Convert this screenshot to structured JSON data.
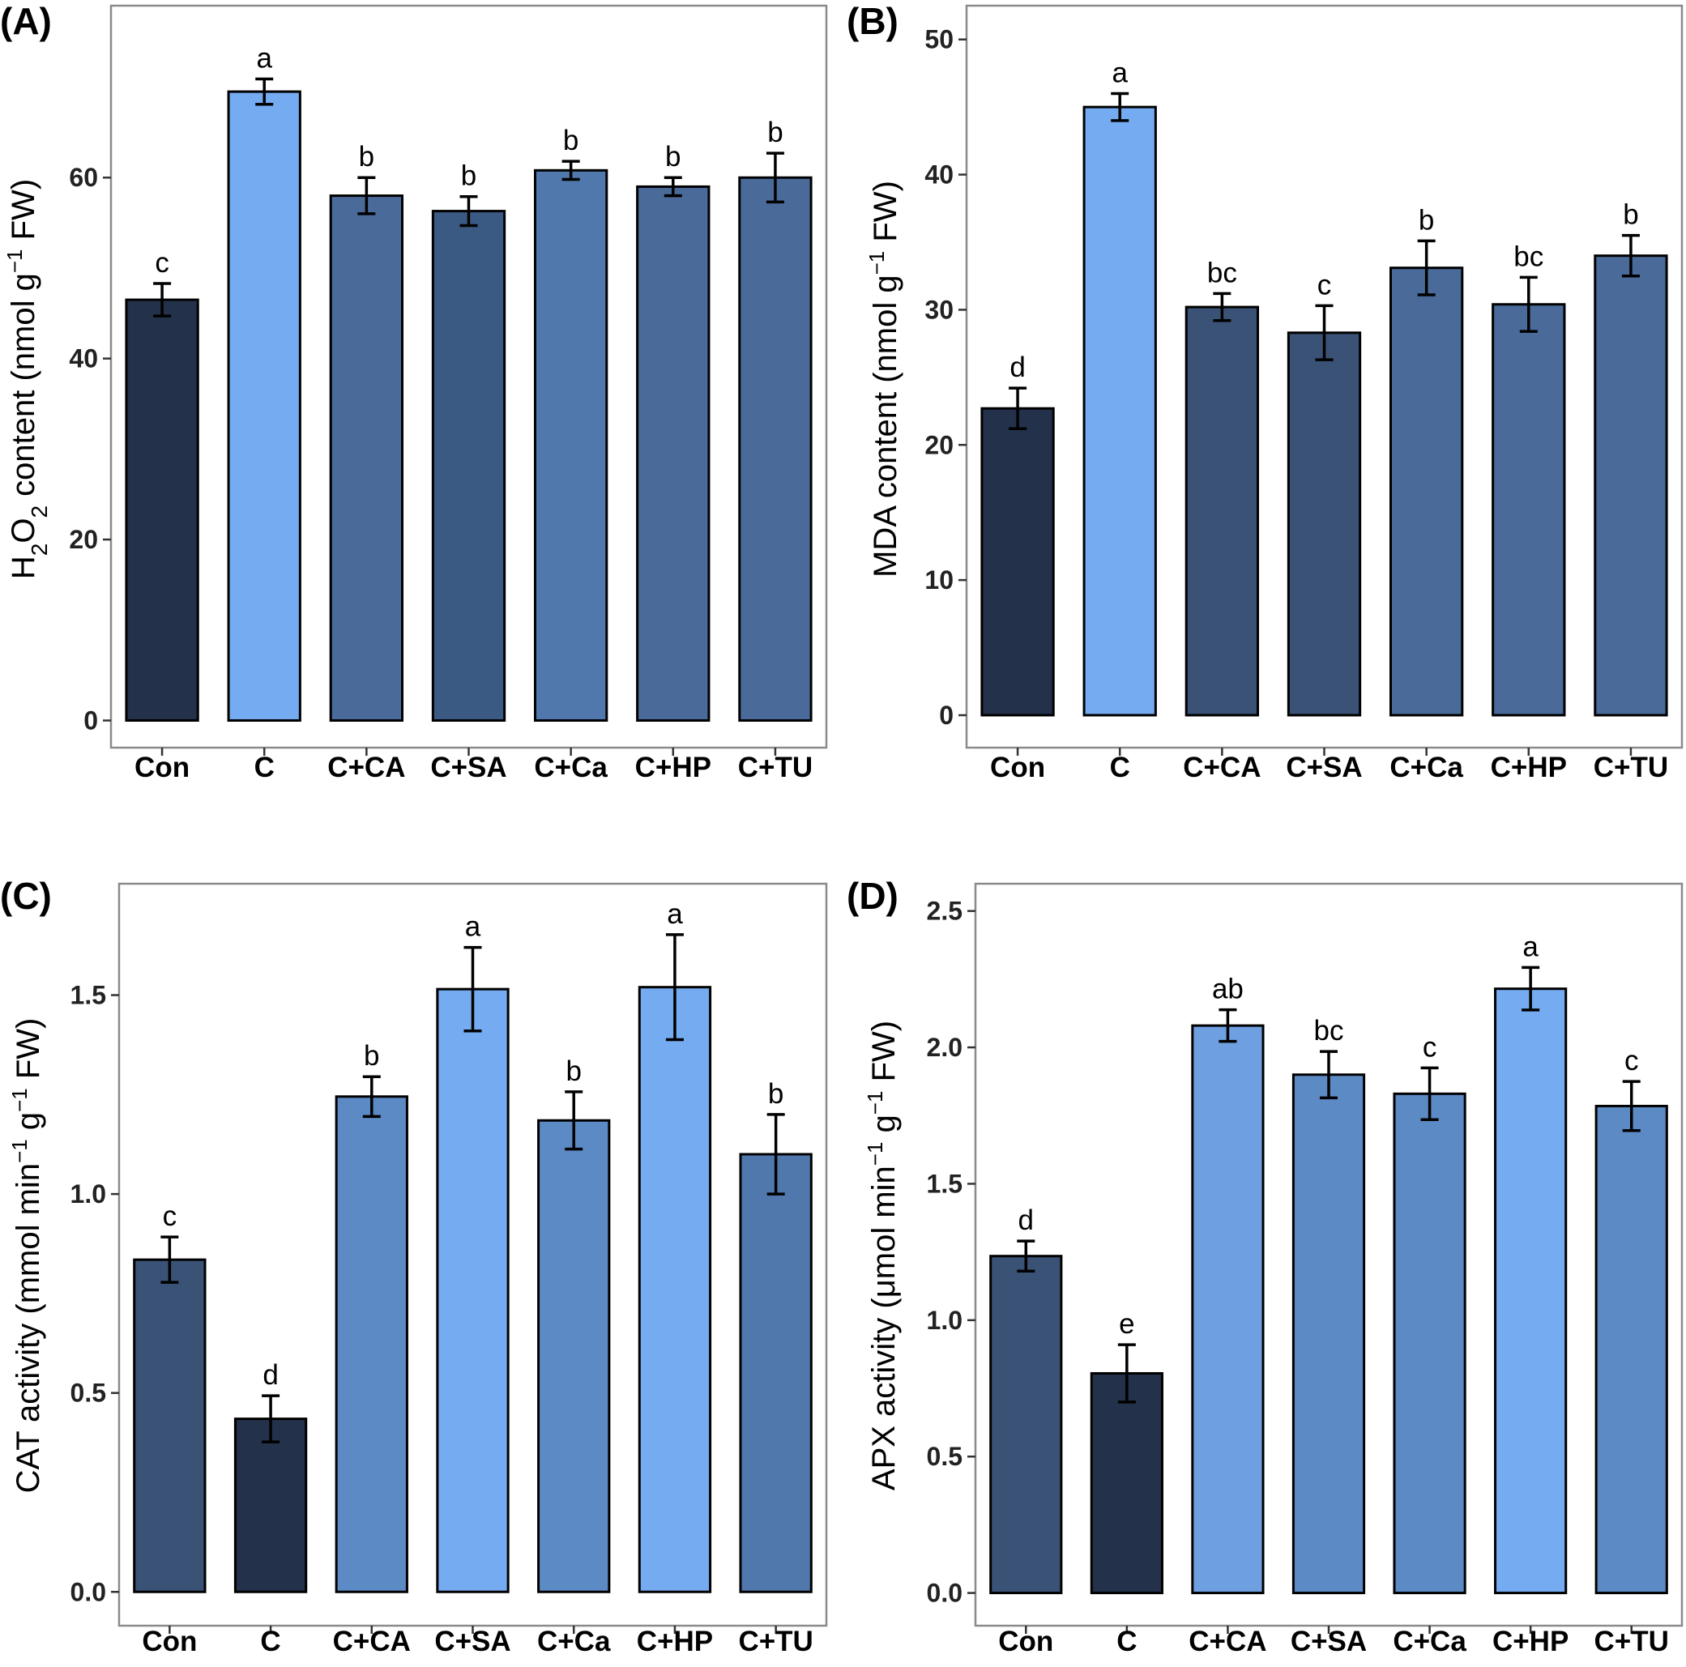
{
  "colors": {
    "dark": "#23314a",
    "mid_dark": "#3a5275",
    "mid_dark2": "#3b5a83",
    "mid": "#4a6b9a",
    "mid_blue": "#5178ad",
    "blue": "#5c8ac4",
    "light_blue": "#6e9fe0",
    "lightest": "#75abf0"
  },
  "chart_data": [
    {
      "type": "bar",
      "panel": "(A)",
      "title": "",
      "xlabel": "",
      "ylabel_html": "H<tspan baseline-shift=\"sub\" font-size=\"28\">2</tspan>O<tspan baseline-shift=\"sub\" font-size=\"28\">2</tspan> content (nmol g<tspan baseline-shift=\"super\" font-size=\"26\">−1</tspan> FW)",
      "ylabel_text": "H2O2 content (nmol g−1 FW)",
      "categories": [
        "Con",
        "C",
        "C+CA",
        "C+SA",
        "C+Ca",
        "C+HP",
        "C+TU"
      ],
      "values": [
        46.5,
        69.5,
        58.0,
        56.3,
        60.8,
        59.0,
        60.0
      ],
      "errors": [
        1.8,
        1.4,
        2.0,
        1.6,
        1.0,
        1.0,
        2.7
      ],
      "letters": [
        "c",
        "a",
        "b",
        "b",
        "b",
        "b",
        "b"
      ],
      "fill_keys": [
        "dark",
        "lightest",
        "mid",
        "mid_dark2",
        "mid_blue",
        "mid",
        "mid"
      ],
      "ylim": [
        -3,
        79
      ],
      "yticks": [
        0,
        20,
        40,
        60
      ],
      "ytick_labels": [
        "0",
        "20",
        "40",
        "60"
      ],
      "grid": false
    },
    {
      "type": "bar",
      "panel": "(B)",
      "title": "",
      "xlabel": "",
      "ylabel_html": "MDA content (nmol g<tspan baseline-shift=\"super\" font-size=\"26\">−1</tspan> FW)",
      "ylabel_text": "MDA content (nmol g−1 FW)",
      "categories": [
        "Con",
        "C",
        "C+CA",
        "C+SA",
        "C+Ca",
        "C+HP",
        "C+TU"
      ],
      "values": [
        22.7,
        45.0,
        30.2,
        28.3,
        33.1,
        30.4,
        34.0
      ],
      "errors": [
        1.5,
        1.0,
        1.0,
        2.0,
        2.0,
        2.0,
        1.5
      ],
      "letters": [
        "d",
        "a",
        "bc",
        "c",
        "b",
        "bc",
        "b"
      ],
      "fill_keys": [
        "dark",
        "lightest",
        "mid_dark",
        "mid_dark",
        "mid",
        "mid",
        "mid"
      ],
      "ylim": [
        -2.4,
        52.5
      ],
      "yticks": [
        0,
        10,
        20,
        30,
        40,
        50
      ],
      "ytick_labels": [
        "0",
        "10",
        "20",
        "30",
        "40",
        "50"
      ],
      "grid": false
    },
    {
      "type": "bar",
      "panel": "(C)",
      "title": "",
      "xlabel": "",
      "ylabel_html": "CAT activity (mmol min<tspan baseline-shift=\"super\" font-size=\"26\">−1</tspan> g<tspan baseline-shift=\"super\" font-size=\"26\">−1</tspan> FW)",
      "ylabel_text": "CAT activity (mmol min−1 g−1 FW)",
      "categories": [
        "Con",
        "C",
        "C+CA",
        "C+SA",
        "C+Ca",
        "C+HP",
        "C+TU"
      ],
      "values": [
        0.835,
        0.435,
        1.245,
        1.515,
        1.185,
        1.52,
        1.1
      ],
      "errors": [
        0.057,
        0.058,
        0.05,
        0.105,
        0.072,
        0.132,
        0.1
      ],
      "letters": [
        "c",
        "d",
        "b",
        "a",
        "b",
        "a",
        "b"
      ],
      "fill_keys": [
        "mid_dark",
        "dark",
        "blue",
        "lightest",
        "blue",
        "lightest",
        "mid_blue"
      ],
      "ylim": [
        -0.085,
        1.78
      ],
      "yticks": [
        0,
        0.5,
        1,
        1.5
      ],
      "ytick_labels": [
        "0.0",
        "0.5",
        "1.0",
        "1.5"
      ],
      "grid": false
    },
    {
      "type": "bar",
      "panel": "(D)",
      "title": "",
      "xlabel": "",
      "ylabel_html": "APX activity (μmol min<tspan baseline-shift=\"super\" font-size=\"26\">−1</tspan> g<tspan baseline-shift=\"super\" font-size=\"26\">−1</tspan> FW)",
      "ylabel_text": "APX activity (μmol min−1 g−1 FW)",
      "categories": [
        "Con",
        "C",
        "C+CA",
        "C+SA",
        "C+Ca",
        "C+HP",
        "C+TU"
      ],
      "values": [
        1.235,
        0.805,
        2.08,
        1.9,
        1.83,
        2.215,
        1.785
      ],
      "errors": [
        0.055,
        0.105,
        0.058,
        0.085,
        0.095,
        0.078,
        0.09
      ],
      "letters": [
        "d",
        "e",
        "ab",
        "bc",
        "c",
        "a",
        "c"
      ],
      "fill_keys": [
        "mid_dark",
        "dark",
        "light_blue",
        "blue",
        "blue",
        "lightest",
        "blue"
      ],
      "ylim": [
        -0.12,
        2.6
      ],
      "yticks": [
        0,
        0.5,
        1,
        1.5,
        2,
        2.5
      ],
      "ytick_labels": [
        "0.0",
        "0.5",
        "1.0",
        "1.5",
        "2.0",
        "2.5"
      ],
      "grid": false
    }
  ]
}
